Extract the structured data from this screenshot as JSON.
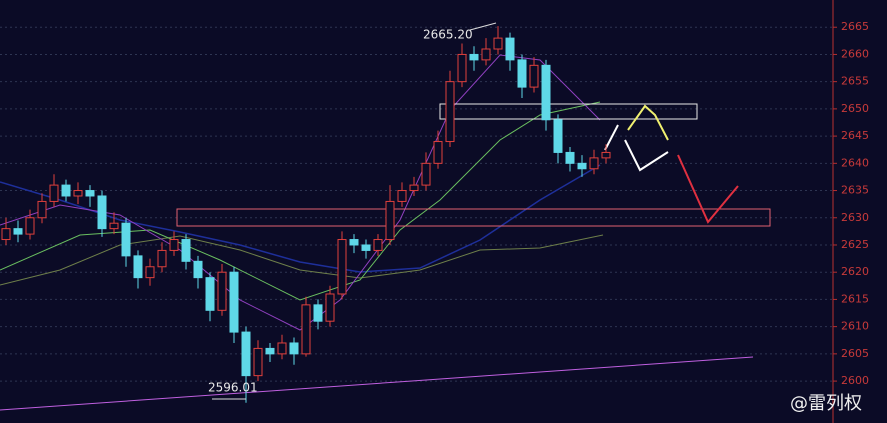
{
  "chart_data": {
    "type": "candlestick",
    "open": [
      2626,
      2628,
      2627,
      2630,
      2633,
      2636,
      2634,
      2635,
      2634,
      2628,
      2629,
      2623,
      2619,
      2621,
      2624,
      2626,
      2622,
      2619,
      2613,
      2620,
      2609,
      2601,
      2606,
      2605,
      2607,
      2605,
      2614,
      2611,
      2616,
      2626,
      2625,
      2624,
      2626,
      2633,
      2635,
      2636,
      2640,
      2644,
      2655,
      2660,
      2659,
      2661,
      2663,
      2659,
      2654,
      2658,
      2648,
      2642,
      2640,
      2639,
      2641
    ],
    "high": [
      2630,
      2629.5,
      2631.5,
      2634.5,
      2638,
      2637,
      2636.5,
      2636,
      2635,
      2631,
      2630,
      2624,
      2622.5,
      2625.5,
      2627.5,
      2627,
      2623,
      2620,
      2621.5,
      2621,
      2610,
      2607.5,
      2607,
      2608.5,
      2608,
      2615.5,
      2615,
      2617.5,
      2627.5,
      2627,
      2626,
      2627,
      2636,
      2636.5,
      2637.5,
      2642,
      2646,
      2657,
      2662,
      2661.5,
      2663,
      2665.2,
      2664,
      2660,
      2659.5,
      2659,
      2649,
      2643,
      2641.5,
      2642.5,
      2643.5
    ],
    "low": [
      2625,
      2625.5,
      2626,
      2629,
      2632,
      2633,
      2632.5,
      2632,
      2626.5,
      2627,
      2621,
      2617,
      2617.5,
      2620,
      2623,
      2620.5,
      2617,
      2611,
      2612,
      2607,
      2596.01,
      2600,
      2603.5,
      2604,
      2603,
      2604.5,
      2609.5,
      2610,
      2615,
      2623.5,
      2622.5,
      2623,
      2625,
      2632,
      2634,
      2635,
      2639,
      2643,
      2654,
      2657,
      2658,
      2660,
      2657,
      2652,
      2653,
      2646,
      2640,
      2638.5,
      2637.5,
      2638,
      2640
    ],
    "close": [
      2628,
      2627,
      2630,
      2633,
      2636,
      2634,
      2635,
      2634,
      2628,
      2629,
      2623,
      2619,
      2621,
      2624,
      2626,
      2622,
      2619,
      2613,
      2620,
      2609,
      2601,
      2606,
      2605,
      2607,
      2605,
      2614,
      2611,
      2616,
      2626,
      2625,
      2624,
      2626,
      2633,
      2635,
      2636,
      2640,
      2644,
      2655,
      2660,
      2659,
      2661,
      2663,
      2659,
      2654,
      2658,
      2648,
      2642,
      2640,
      2639,
      2641,
      2642
    ],
    "up_color": "#e0403c",
    "down_color": "#5fd8e8",
    "ylim": [
      2592.3,
      2670
    ],
    "yticks": [
      2600,
      2605,
      2610,
      2615,
      2620,
      2625,
      2630,
      2635,
      2640,
      2645,
      2650,
      2655,
      2660,
      2665
    ],
    "grid": true,
    "annotations": [
      "2665.20",
      "2596.01",
      "@雷列权"
    ]
  }
}
